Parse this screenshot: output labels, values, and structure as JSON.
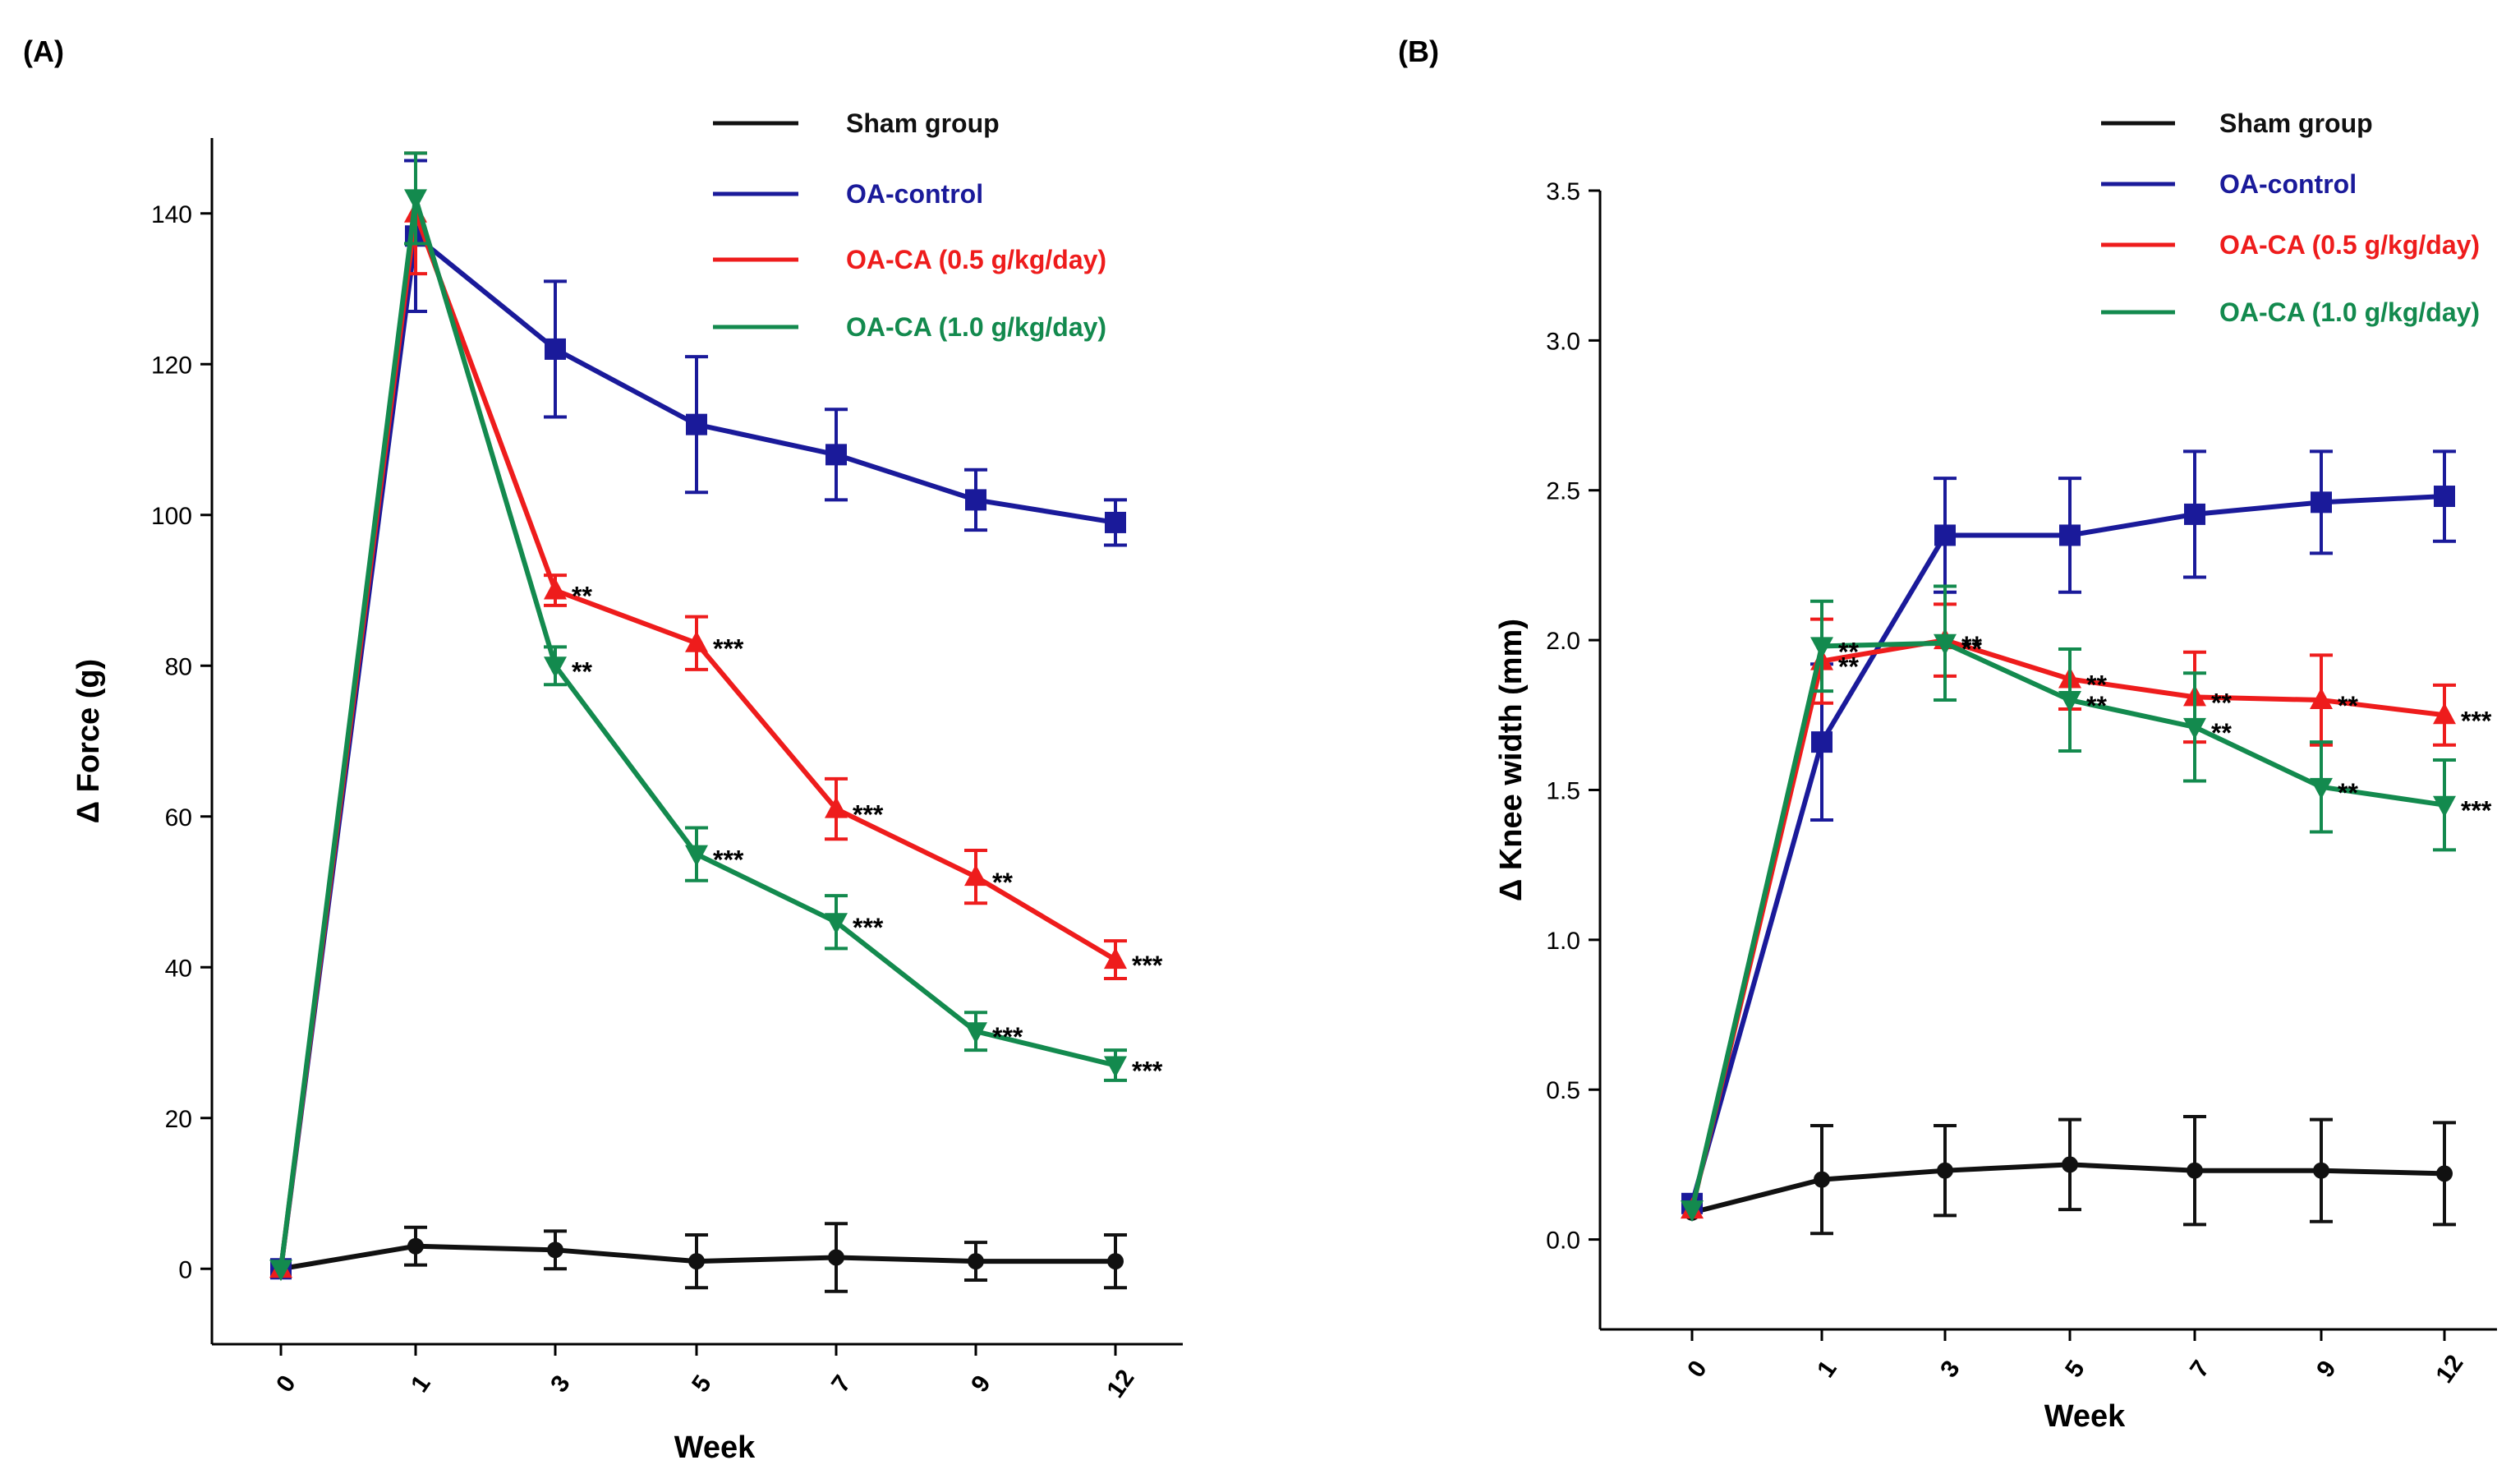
{
  "panels": {
    "a_label": "(A)",
    "b_label": "(B)"
  },
  "chart_data": [
    {
      "type": "line",
      "title": "(A)",
      "xlabel": "Week",
      "ylabel": "Δ Force (g)",
      "categories": [
        "0",
        "1",
        "3",
        "5",
        "7",
        "9",
        "12"
      ],
      "ylim": [
        -10,
        150
      ],
      "yticks": [
        0,
        20,
        40,
        60,
        80,
        100,
        120,
        140
      ],
      "grid": false,
      "legend_position": "top-right",
      "series": [
        {
          "name": "Sham group",
          "color": "#111111",
          "marker": "circle",
          "values": [
            0,
            3,
            2.5,
            1,
            1.5,
            1,
            1
          ],
          "errors": [
            0,
            2.5,
            2.5,
            3.5,
            4.5,
            2.5,
            3.5
          ]
        },
        {
          "name": "OA-control",
          "color": "#1a1a9a",
          "marker": "square",
          "values": [
            0,
            137,
            122,
            112,
            108,
            102,
            99
          ],
          "errors": [
            0,
            10,
            9,
            9,
            6,
            4,
            3
          ]
        },
        {
          "name": "OA-CA (0.5 g/kg/day)",
          "color": "#ee1c1c",
          "marker": "triangle-up",
          "values": [
            0,
            140,
            90,
            83,
            61,
            52,
            41
          ],
          "errors": [
            0,
            8,
            2,
            3.5,
            4,
            3.5,
            2.5
          ]
        },
        {
          "name": "OA-CA (1.0 g/kg/day)",
          "color": "#138a4e",
          "marker": "triangle-down",
          "values": [
            0,
            142,
            80,
            55,
            46,
            31.5,
            27
          ],
          "errors": [
            0,
            6,
            2.5,
            3.5,
            3.5,
            2.5,
            2
          ]
        }
      ],
      "annotations": [
        {
          "series": 2,
          "index": 2,
          "text": "**"
        },
        {
          "series": 2,
          "index": 3,
          "text": "***"
        },
        {
          "series": 2,
          "index": 4,
          "text": "***"
        },
        {
          "series": 2,
          "index": 5,
          "text": "**"
        },
        {
          "series": 2,
          "index": 6,
          "text": "***"
        },
        {
          "series": 3,
          "index": 2,
          "text": "**"
        },
        {
          "series": 3,
          "index": 3,
          "text": "***"
        },
        {
          "series": 3,
          "index": 4,
          "text": "***"
        },
        {
          "series": 3,
          "index": 5,
          "text": "***"
        },
        {
          "series": 3,
          "index": 6,
          "text": "***"
        }
      ]
    },
    {
      "type": "line",
      "title": "(B)",
      "xlabel": "Week",
      "ylabel": "Δ Knee width (mm)",
      "categories": [
        "0",
        "1",
        "3",
        "5",
        "7",
        "9",
        "12"
      ],
      "ylim": [
        -0.3,
        3.5
      ],
      "yticks": [
        "0.0",
        "0.5",
        "1.0",
        "1.5",
        "2.0",
        "2.5",
        "3.0",
        "3.5"
      ],
      "grid": false,
      "legend_position": "top-right",
      "series": [
        {
          "name": "Sham group",
          "color": "#111111",
          "marker": "circle",
          "values": [
            0.09,
            0.2,
            0.23,
            0.25,
            0.23,
            0.23,
            0.22
          ],
          "errors": [
            0,
            0.18,
            0.15,
            0.15,
            0.18,
            0.17,
            0.17
          ]
        },
        {
          "name": "OA-control",
          "color": "#1a1a9a",
          "marker": "square",
          "values": [
            0.12,
            1.66,
            2.35,
            2.35,
            2.42,
            2.46,
            2.48
          ],
          "errors": [
            0,
            0.26,
            0.19,
            0.19,
            0.21,
            0.17,
            0.15
          ]
        },
        {
          "name": "OA-CA (0.5 g/kg/day)",
          "color": "#ee1c1c",
          "marker": "triangle-up",
          "values": [
            0.1,
            1.93,
            2.0,
            1.87,
            1.81,
            1.8,
            1.75
          ],
          "errors": [
            0,
            0.14,
            0.12,
            0.1,
            0.15,
            0.15,
            0.1
          ]
        },
        {
          "name": "OA-CA (1.0 g/kg/day)",
          "color": "#138a4e",
          "marker": "triangle-down",
          "values": [
            0.1,
            1.98,
            1.99,
            1.8,
            1.71,
            1.51,
            1.45
          ],
          "errors": [
            0,
            0.15,
            0.19,
            0.17,
            0.18,
            0.15,
            0.15
          ]
        }
      ],
      "annotations": [
        {
          "series": 2,
          "index": 1,
          "text": "**"
        },
        {
          "series": 2,
          "index": 2,
          "text": "**"
        },
        {
          "series": 2,
          "index": 3,
          "text": "**"
        },
        {
          "series": 2,
          "index": 4,
          "text": "**"
        },
        {
          "series": 2,
          "index": 5,
          "text": "**"
        },
        {
          "series": 2,
          "index": 6,
          "text": "***"
        },
        {
          "series": 3,
          "index": 1,
          "text": "**"
        },
        {
          "series": 3,
          "index": 2,
          "text": "**"
        },
        {
          "series": 3,
          "index": 3,
          "text": "**"
        },
        {
          "series": 3,
          "index": 4,
          "text": "**"
        },
        {
          "series": 3,
          "index": 5,
          "text": "**"
        },
        {
          "series": 3,
          "index": 6,
          "text": "***"
        }
      ]
    }
  ]
}
